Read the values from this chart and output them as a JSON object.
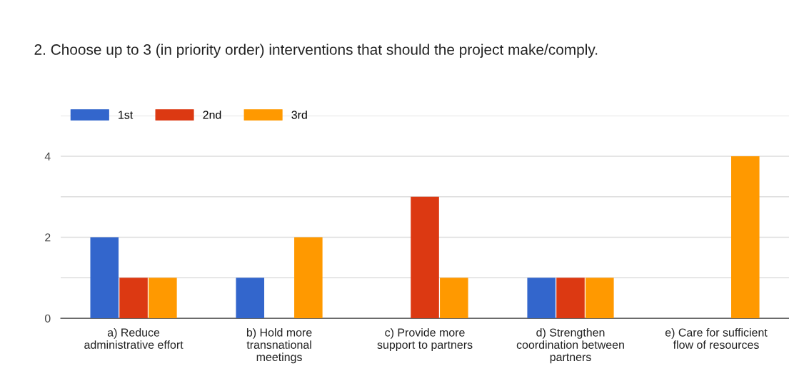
{
  "chart_data": {
    "type": "bar",
    "title": "2. Choose up to 3 (in priority order) interventions that should the project make/comply.",
    "categories": [
      "a) Reduce\nadministrative effort",
      "b) Hold more\ntransnational\nmeetings",
      "c) Provide more\nsupport to partners",
      "d) Strengthen\ncoordination between\npartners",
      "e) Care for sufficient\nflow of resources"
    ],
    "series": [
      {
        "name": "1st",
        "color": "#3366cc",
        "values": [
          2,
          1,
          0,
          1,
          0
        ]
      },
      {
        "name": "2nd",
        "color": "#dc3912",
        "values": [
          1,
          0,
          3,
          1,
          0
        ]
      },
      {
        "name": "3rd",
        "color": "#ff9900",
        "values": [
          1,
          2,
          1,
          1,
          4
        ]
      }
    ],
    "ylim": [
      0,
      5
    ],
    "yticks": [
      0,
      {
        "value": 1,
        "label": null
      },
      2,
      {
        "value": 3,
        "label": null
      },
      4,
      {
        "value": 5,
        "label": null
      }
    ],
    "grid": "y",
    "legend": "top left"
  }
}
